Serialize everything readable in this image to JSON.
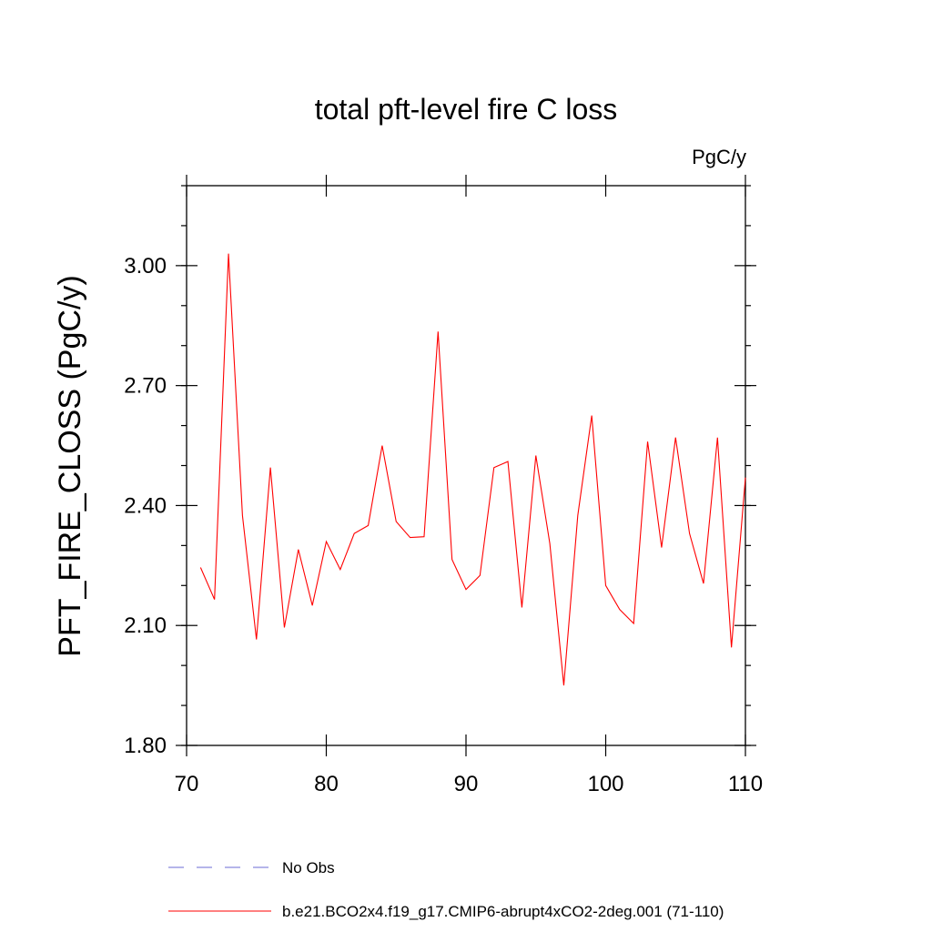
{
  "chart_data": {
    "type": "line",
    "title": "total pft-level fire C loss",
    "units_label": "PgC/y",
    "xlabel": "",
    "ylabel": "PFT_FIRE_CLOSS  (PgC/y)",
    "xlim": [
      70,
      110
    ],
    "ylim": [
      1.8,
      3.2
    ],
    "x_ticks": [
      70,
      80,
      90,
      100,
      110
    ],
    "x_tick_labels": [
      "70",
      "80",
      "90",
      "100",
      "110"
    ],
    "y_ticks": [
      1.8,
      2.1,
      2.4,
      2.7,
      3.0
    ],
    "y_tick_labels": [
      "1.80",
      "2.10",
      "2.40",
      "2.70",
      "3.00"
    ],
    "series": [
      {
        "name": "b.e21.BCO2x4.f19_g17.CMIP6-abrupt4xCO2-2deg.001 (71-110)",
        "color": "#ff0000",
        "style": "solid",
        "x": [
          71,
          72,
          73,
          74,
          75,
          76,
          77,
          78,
          79,
          80,
          81,
          82,
          83,
          84,
          85,
          86,
          87,
          88,
          89,
          90,
          91,
          92,
          93,
          94,
          95,
          96,
          97,
          98,
          99,
          100,
          101,
          102,
          103,
          104,
          105,
          106,
          107,
          108,
          109,
          110
        ],
        "values": [
          2.245,
          2.165,
          3.03,
          2.375,
          2.065,
          2.495,
          2.095,
          2.29,
          2.15,
          2.31,
          2.24,
          2.33,
          2.35,
          2.55,
          2.36,
          2.32,
          2.322,
          2.835,
          2.265,
          2.19,
          2.225,
          2.495,
          2.51,
          2.145,
          2.525,
          2.305,
          1.95,
          2.375,
          2.625,
          2.2,
          2.14,
          2.105,
          2.56,
          2.295,
          2.57,
          2.33,
          2.205,
          2.57,
          2.045,
          2.47
        ]
      },
      {
        "name": "No Obs",
        "color": "#6b6bd6",
        "style": "dashed",
        "x": [],
        "values": []
      }
    ],
    "legend": [
      {
        "label": "No Obs",
        "color": "#6b6bd6",
        "style": "dashed"
      },
      {
        "label": "b.e21.BCO2x4.f19_g17.CMIP6-abrupt4xCO2-2deg.001 (71-110)",
        "color": "#ff0000",
        "style": "solid"
      }
    ]
  }
}
